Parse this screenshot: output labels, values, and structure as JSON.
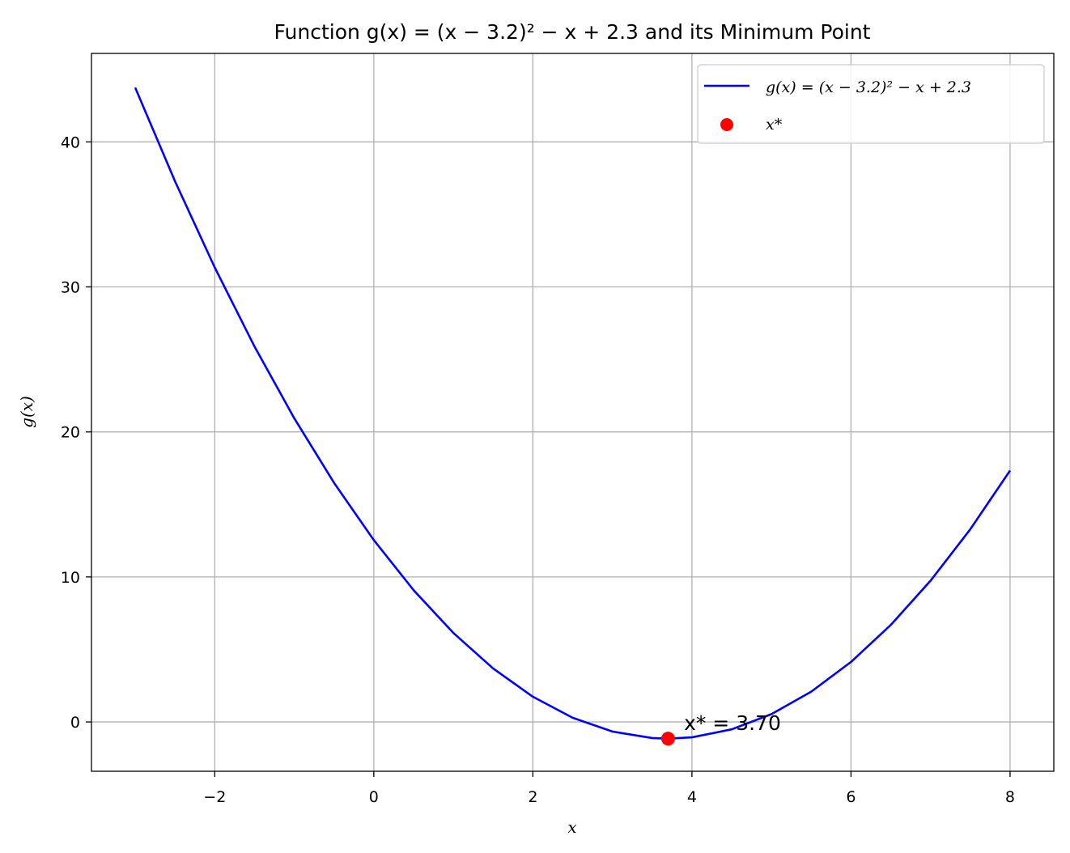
{
  "chart_data": {
    "type": "line",
    "title": "Function g(x) = (x − 3.2)² − x + 2.3 and its Minimum Point",
    "xlabel": "x",
    "ylabel": "g(x)",
    "xlim": [
      -3.55,
      8.55
    ],
    "ylim": [
      -3.4,
      46.1
    ],
    "xticks": [
      -2,
      0,
      2,
      4,
      6,
      8
    ],
    "xtick_labels": [
      "−2",
      "0",
      "2",
      "4",
      "6",
      "8"
    ],
    "yticks": [
      0,
      10,
      20,
      30,
      40
    ],
    "ytick_labels": [
      "0",
      "10",
      "20",
      "30",
      "40"
    ],
    "grid": true,
    "legend_position": "top-right",
    "series": [
      {
        "name": "g(x) = (x − 3.2)² − x + 2.3",
        "kind": "line",
        "color": "#0000ff",
        "x": [
          -3.0,
          -2.5,
          -2.0,
          -1.5,
          -1.0,
          -0.5,
          0.0,
          0.5,
          1.0,
          1.5,
          2.0,
          2.5,
          3.0,
          3.5,
          3.7,
          4.0,
          4.5,
          5.0,
          5.5,
          6.0,
          6.5,
          7.0,
          7.5,
          8.0
        ],
        "y": [
          43.74,
          37.29,
          31.34,
          25.89,
          20.94,
          16.49,
          12.54,
          9.09,
          6.14,
          3.69,
          1.74,
          0.29,
          -0.66,
          -1.11,
          -1.15,
          -1.06,
          -0.51,
          0.54,
          2.09,
          4.14,
          6.69,
          9.74,
          13.29,
          17.34
        ]
      },
      {
        "name": "x*",
        "kind": "scatter",
        "color": "#ff0000",
        "x": [
          3.7
        ],
        "y": [
          -1.15
        ]
      }
    ],
    "annotations": [
      {
        "text": "x* = 3.70",
        "x": 3.9,
        "y": -0.1
      }
    ]
  }
}
